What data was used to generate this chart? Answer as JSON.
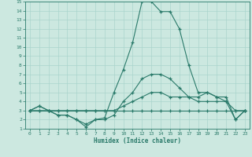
{
  "xlabel": "Humidex (Indice chaleur)",
  "xlim": [
    -0.5,
    23.5
  ],
  "ylim": [
    1,
    15
  ],
  "xticks": [
    0,
    1,
    2,
    3,
    4,
    5,
    6,
    7,
    8,
    9,
    10,
    11,
    12,
    13,
    14,
    15,
    16,
    17,
    18,
    19,
    20,
    21,
    22,
    23
  ],
  "yticks": [
    1,
    2,
    3,
    4,
    5,
    6,
    7,
    8,
    9,
    10,
    11,
    12,
    13,
    14,
    15
  ],
  "bg_color": "#cce8e0",
  "line_color": "#2a7a6a",
  "grid_color": "#aad4cc",
  "series": [
    [
      3,
      3,
      3,
      3,
      3,
      3,
      3,
      3,
      3,
      3,
      3,
      3,
      3,
      3,
      3,
      3,
      3,
      3,
      3,
      3,
      3,
      3,
      3,
      3
    ],
    [
      3,
      3.5,
      3,
      3,
      3,
      3,
      3,
      3,
      3,
      3,
      3.5,
      4,
      4.5,
      5,
      5,
      4.5,
      4.5,
      4.5,
      4.5,
      5,
      4.5,
      4,
      3,
      3
    ],
    [
      3,
      3,
      3,
      2.5,
      2.5,
      2,
      1.2,
      2,
      2.2,
      5,
      7.5,
      10.5,
      15,
      15,
      13.9,
      13.9,
      12,
      8,
      5,
      5,
      4.5,
      4.5,
      2,
      3
    ],
    [
      3,
      3.5,
      3,
      2.5,
      2.5,
      2,
      1.5,
      2,
      2,
      2.5,
      4,
      5,
      6.5,
      7,
      7,
      6.5,
      5.5,
      4.5,
      4,
      4,
      4,
      4,
      2,
      3
    ]
  ]
}
